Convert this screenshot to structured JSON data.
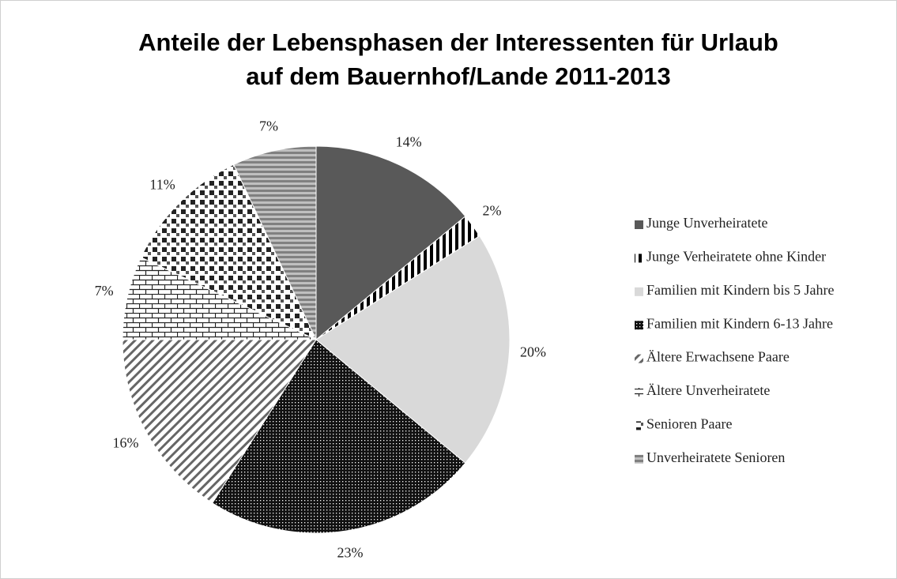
{
  "chart_data": {
    "type": "pie",
    "title": [
      "Anteile der Lebensphasen der Interessenten für Urlaub",
      "auf dem Bauernhof/Lande 2011-2013"
    ],
    "categories": [
      "Junge Unverheiratete",
      "Junge Verheiratete ohne Kinder",
      "Familien mit Kindern bis 5 Jahre",
      "Familien mit Kindern 6-13 Jahre",
      "Ältere Erwachsene Paare",
      "Ältere Unverheiratete",
      "Senioren Paare",
      "Unverheiratete Senioren"
    ],
    "values": [
      14,
      2,
      20,
      23,
      16,
      7,
      11,
      7
    ],
    "value_labels": [
      "14%",
      "2%",
      "20%",
      "23%",
      "16%",
      "7%",
      "11%",
      "7%"
    ],
    "legend": "right"
  }
}
